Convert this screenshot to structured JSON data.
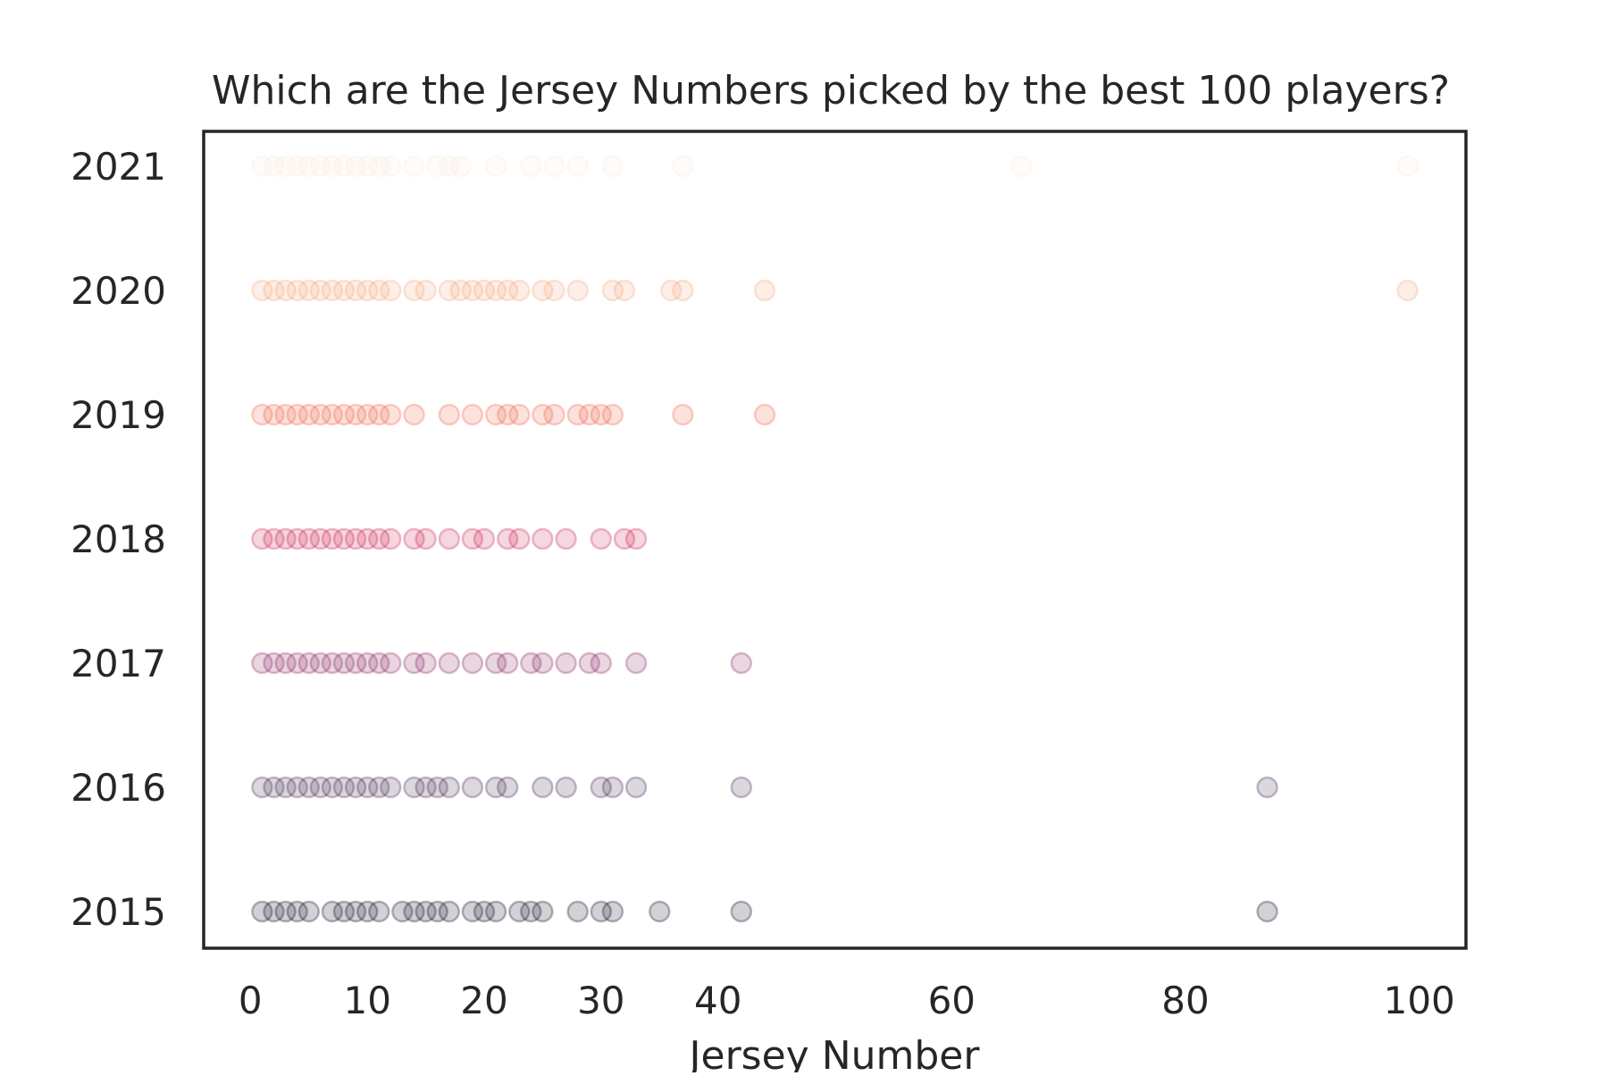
{
  "chart_data": {
    "type": "scatter",
    "title": "Which are the Jersey Numbers picked by the best 100 players?",
    "xlabel": "Jersey Number",
    "ylabel": "",
    "xlim": [
      -4,
      104
    ],
    "x_ticks": [
      0,
      10,
      20,
      30,
      40,
      60,
      80,
      100
    ],
    "categories": [
      "2021",
      "2020",
      "2019",
      "2018",
      "2017",
      "2016",
      "2015"
    ],
    "grid": false,
    "marker_opacity": 0.18,
    "series": [
      {
        "year": "2015",
        "color": "#03051a",
        "x": [
          1,
          2,
          3,
          4,
          5,
          7,
          8,
          9,
          10,
          11,
          13,
          14,
          15,
          16,
          17,
          19,
          20,
          21,
          23,
          24,
          25,
          28,
          30,
          31,
          35,
          42,
          87
        ]
      },
      {
        "year": "2016",
        "color": "#3b1f4a",
        "x": [
          1,
          2,
          3,
          4,
          5,
          6,
          7,
          8,
          9,
          10,
          11,
          12,
          14,
          15,
          16,
          17,
          19,
          21,
          22,
          25,
          27,
          30,
          31,
          33,
          42,
          87
        ]
      },
      {
        "year": "2017",
        "color": "#841e5a",
        "x": [
          1,
          2,
          3,
          4,
          5,
          6,
          7,
          8,
          9,
          10,
          11,
          12,
          14,
          15,
          17,
          19,
          21,
          22,
          24,
          25,
          27,
          29,
          30,
          33,
          42
        ]
      },
      {
        "year": "2018",
        "color": "#cb1b4f",
        "x": [
          1,
          2,
          3,
          4,
          5,
          6,
          7,
          8,
          9,
          10,
          11,
          12,
          14,
          15,
          17,
          19,
          20,
          22,
          23,
          25,
          27,
          30,
          32,
          33
        ]
      },
      {
        "year": "2019",
        "color": "#f06043",
        "x": [
          1,
          2,
          3,
          4,
          5,
          6,
          7,
          8,
          9,
          10,
          11,
          12,
          14,
          17,
          19,
          21,
          22,
          23,
          25,
          26,
          28,
          29,
          30,
          31,
          37,
          44
        ]
      },
      {
        "year": "2020",
        "color": "#f6a47b",
        "x": [
          1,
          2,
          3,
          4,
          5,
          6,
          7,
          8,
          9,
          10,
          11,
          12,
          14,
          15,
          17,
          18,
          19,
          20,
          21,
          22,
          23,
          25,
          26,
          28,
          31,
          32,
          36,
          37,
          44,
          99
        ]
      },
      {
        "year": "2021",
        "color": "#faebdd",
        "x": [
          1,
          2,
          3,
          4,
          5,
          6,
          7,
          8,
          9,
          10,
          11,
          12,
          14,
          16,
          17,
          18,
          21,
          24,
          26,
          28,
          31,
          37,
          66,
          99
        ]
      }
    ]
  }
}
